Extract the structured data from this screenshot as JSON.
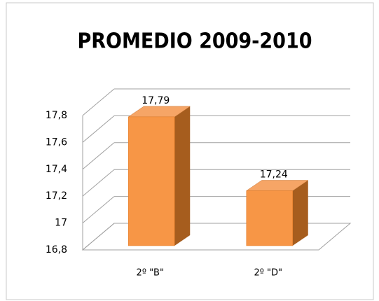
{
  "chart_data": {
    "type": "bar3d",
    "title": "PROMEDIO 2009-2010",
    "categories": [
      "2º \"B\"",
      "2º \"D\""
    ],
    "values": [
      17.79,
      17.24
    ],
    "value_labels": [
      "17,79",
      "17,24"
    ],
    "color": "#f79646",
    "ylim": [
      16.8,
      17.8
    ],
    "yticks": [
      {
        "value": 16.8,
        "label": "16,8"
      },
      17,
      {
        "value": 17.2,
        "label": "17,2"
      },
      {
        "value": 17.4,
        "label": "17,4"
      },
      {
        "value": 17.6,
        "label": "17,6"
      },
      {
        "value": 17.8,
        "label": "17,8"
      }
    ],
    "grid": true
  }
}
